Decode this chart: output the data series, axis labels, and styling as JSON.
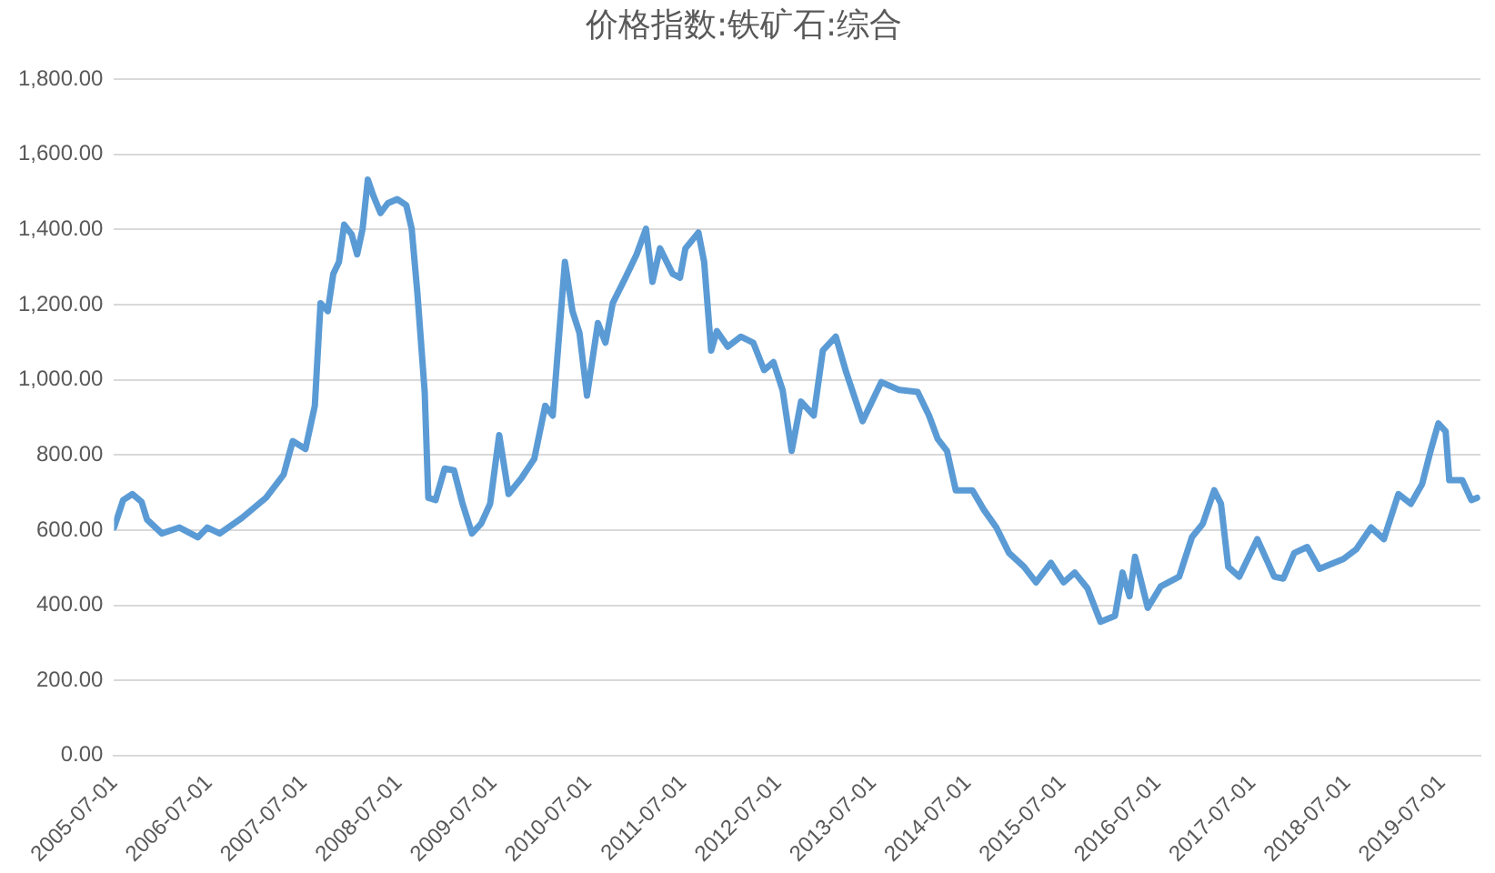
{
  "chart_data": {
    "type": "line",
    "title": "价格指数:铁矿石:综合",
    "x": [
      "2005-07-01",
      "2005-08-05",
      "2005-09-10",
      "2005-10-15",
      "2005-11-05",
      "2006-01-01",
      "2006-03-10",
      "2006-05-20",
      "2006-06-25",
      "2006-08-12",
      "2006-11-06",
      "2007-02-06",
      "2007-04-15",
      "2007-05-20",
      "2007-07-08",
      "2007-08-13",
      "2007-09-04",
      "2007-10-02",
      "2007-10-23",
      "2007-11-14",
      "2007-12-04",
      "2008-01-02",
      "2008-01-23",
      "2008-02-13",
      "2008-03-04",
      "2008-03-25",
      "2008-04-22",
      "2008-05-20",
      "2008-06-25",
      "2008-07-30",
      "2008-08-20",
      "2008-09-11",
      "2008-10-09",
      "2008-10-23",
      "2008-11-20",
      "2008-12-25",
      "2009-01-30",
      "2009-03-04",
      "2009-04-09",
      "2009-05-14",
      "2009-06-18",
      "2009-07-23",
      "2009-08-28",
      "2009-10-16",
      "2009-12-05",
      "2010-01-16",
      "2010-02-14",
      "2010-04-02",
      "2010-05-01",
      "2010-05-28",
      "2010-06-26",
      "2010-08-07",
      "2010-09-05",
      "2010-10-03",
      "2010-11-21",
      "2011-01-03",
      "2011-02-08",
      "2011-03-05",
      "2011-04-03",
      "2011-05-22",
      "2011-06-19",
      "2011-07-10",
      "2011-08-29",
      "2011-09-20",
      "2011-10-17",
      "2011-11-08",
      "2011-12-20",
      "2012-02-08",
      "2012-03-27",
      "2012-05-08",
      "2012-06-13",
      "2012-07-18",
      "2012-08-22",
      "2012-09-27",
      "2012-11-15",
      "2012-12-20",
      "2013-02-08",
      "2013-03-20",
      "2013-05-22",
      "2013-08-02",
      "2013-10-11",
      "2013-12-20",
      "2014-02-02",
      "2014-03-07",
      "2014-04-12",
      "2014-05-16",
      "2014-07-19",
      "2014-09-01",
      "2014-10-19",
      "2014-12-07",
      "2015-02-03",
      "2015-03-21",
      "2015-05-17",
      "2015-07-05",
      "2015-08-17",
      "2015-10-05",
      "2015-11-24",
      "2016-01-19",
      "2016-02-17",
      "2016-03-15",
      "2016-04-05",
      "2016-05-24",
      "2016-07-13",
      "2016-09-22",
      "2016-11-10",
      "2016-12-22",
      "2017-02-04",
      "2017-03-02",
      "2017-03-30",
      "2017-05-11",
      "2017-07-20",
      "2017-09-23",
      "2017-10-28",
      "2017-12-09",
      "2018-01-28",
      "2018-03-16",
      "2018-06-16",
      "2018-08-05",
      "2018-10-01",
      "2018-11-19",
      "2019-01-14",
      "2019-03-03",
      "2019-04-15",
      "2019-05-20",
      "2019-06-17",
      "2019-07-15",
      "2019-07-29",
      "2019-09-17",
      "2019-10-22",
      "2019-11-13"
    ],
    "series": [
      {
        "color": "#5b9bd5",
        "values": [
          607,
          680,
          696,
          675,
          628,
          591,
          607,
          581,
          607,
          591,
          633,
          686,
          748,
          837,
          816,
          931,
          1204,
          1183,
          1282,
          1314,
          1413,
          1387,
          1334,
          1402,
          1533,
          1491,
          1444,
          1470,
          1481,
          1465,
          1402,
          1230,
          968,
          686,
          680,
          764,
          759,
          670,
          591,
          617,
          670,
          853,
          696,
          738,
          790,
          931,
          905,
          1314,
          1183,
          1125,
          958,
          1151,
          1099,
          1204,
          1272,
          1334,
          1402,
          1261,
          1350,
          1282,
          1272,
          1350,
          1392,
          1314,
          1078,
          1130,
          1088,
          1115,
          1099,
          1026,
          1047,
          973,
          811,
          942,
          905,
          1078,
          1115,
          1020,
          890,
          994,
          973,
          968,
          905,
          843,
          811,
          706,
          706,
          654,
          607,
          539,
          502,
          461,
          513,
          461,
          487,
          445,
          356,
          372,
          487,
          424,
          529,
          393,
          450,
          476,
          581,
          617,
          706,
          670,
          502,
          476,
          576,
          476,
          471,
          539,
          555,
          497,
          523,
          549,
          607,
          576,
          696,
          670,
          722,
          816,
          884,
          863,
          733,
          733,
          680,
          686
        ]
      }
    ],
    "xlim": [
      "2005-07-01",
      "2019-11-26"
    ],
    "xticks": [
      "2005-07-01",
      "2006-07-01",
      "2007-07-01",
      "2008-07-01",
      "2009-07-01",
      "2010-07-01",
      "2011-07-01",
      "2012-07-01",
      "2013-07-01",
      "2014-07-01",
      "2015-07-01",
      "2016-07-01",
      "2017-07-01",
      "2018-07-01",
      "2019-07-01"
    ],
    "ylim": [
      0,
      1800
    ],
    "yticks": [
      {
        "value": 0,
        "label": "0.00"
      },
      {
        "value": 200,
        "label": "200.00"
      },
      {
        "value": 400,
        "label": "400.00"
      },
      {
        "value": 600,
        "label": "600.00"
      },
      {
        "value": 800,
        "label": "800.00"
      },
      {
        "value": 1000,
        "label": "1,000.00"
      },
      {
        "value": 1200,
        "label": "1,200.00"
      },
      {
        "value": 1400,
        "label": "1,400.00"
      },
      {
        "value": 1600,
        "label": "1,600.00"
      },
      {
        "value": 1800,
        "label": "1,800.00"
      }
    ],
    "grid": "y",
    "legend": false,
    "marker": "none",
    "line_style": "solid"
  }
}
